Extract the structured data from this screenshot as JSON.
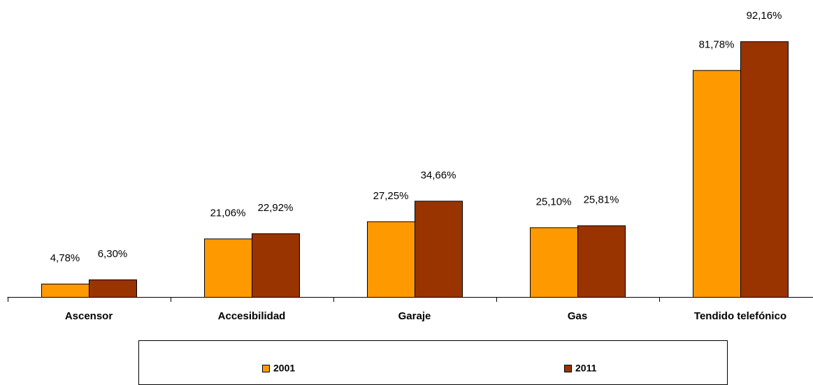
{
  "chart_data": {
    "type": "bar",
    "categories": [
      "Ascensor",
      "Accesibilidad",
      "Garaje",
      "Gas",
      "Tendido telefónico"
    ],
    "series": [
      {
        "name": "2001",
        "color": "#FF9900",
        "values": [
          4.78,
          21.06,
          27.25,
          25.1,
          81.78
        ],
        "value_labels": [
          "4,78%",
          "21,06%",
          "27,25%",
          "25,10%",
          "81,78%"
        ]
      },
      {
        "name": "2011",
        "color": "#993300",
        "values": [
          6.3,
          22.92,
          34.66,
          25.81,
          92.16
        ],
        "value_labels": [
          "6,30%",
          "22,92%",
          "34,66%",
          "25,81%",
          "92,16%"
        ]
      }
    ],
    "ylim": [
      0,
      100
    ],
    "legend": "bottom"
  }
}
